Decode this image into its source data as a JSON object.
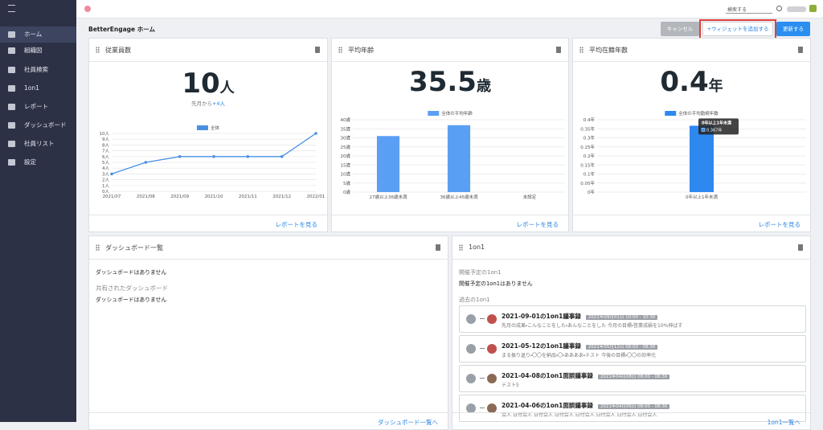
{
  "sidebar": {
    "items": [
      "ホーム",
      "組織図",
      "社員検索",
      "1on1",
      "レポート",
      "ダッシュボード",
      "社員リスト",
      "設定"
    ]
  },
  "topbar": {
    "search_placeholder": "検索する"
  },
  "header": {
    "title": "BetterEngage ホーム",
    "cancel": "キャンセル",
    "add_widget": "+ウィジェットを追加する",
    "update": "更新する"
  },
  "widgets": [
    {
      "title": "従業員数",
      "value": "10",
      "unit": "人",
      "note": "先月から",
      "delta": "+4人",
      "link": "レポートを見る"
    },
    {
      "title": "平均年齢",
      "value": "35.5",
      "unit": "歳",
      "link": "レポートを見る"
    },
    {
      "title": "平均在籍年数",
      "value": "0.4",
      "unit": "年",
      "link": "レポートを見る"
    }
  ],
  "chart_data": [
    {
      "type": "line",
      "categories": [
        "2021/07",
        "2021/08",
        "2021/09",
        "2021/10",
        "2021/11",
        "2021/12",
        "2022/01"
      ],
      "series": [
        {
          "name": "全体",
          "color": "#4a90e2",
          "values": [
            3,
            5,
            6,
            6,
            6,
            6,
            10
          ]
        }
      ],
      "ylim": [
        0,
        10
      ],
      "yticks": [
        {
          "value": 0,
          "label": "0人"
        },
        {
          "value": 1,
          "label": "1人"
        },
        {
          "value": 2,
          "label": "2人"
        },
        {
          "value": 3,
          "label": "3人"
        },
        {
          "value": 4,
          "label": "4人"
        },
        {
          "value": 5,
          "label": "5人"
        },
        {
          "value": 6,
          "label": "6人"
        },
        {
          "value": 7,
          "label": "7人"
        },
        {
          "value": 8,
          "label": "8人"
        },
        {
          "value": 9,
          "label": "9人"
        },
        {
          "value": 10,
          "label": "10人"
        }
      ],
      "grid": true,
      "legend": "top"
    },
    {
      "type": "bar",
      "categories": [
        "27歳以上36歳未満",
        "36歳以上45歳未満",
        "未設定"
      ],
      "series": [
        {
          "name": "全体の平均年齢",
          "color": "#5b9ff5",
          "values": [
            31,
            37,
            null
          ]
        }
      ],
      "ylim": [
        0,
        40
      ],
      "yticks": [
        {
          "value": 0,
          "label": "0歳"
        },
        {
          "value": 5,
          "label": "5歳"
        },
        {
          "value": 10,
          "label": "10歳"
        },
        {
          "value": 15,
          "label": "15歳"
        },
        {
          "value": 20,
          "label": "20歳"
        },
        {
          "value": 25,
          "label": "25歳"
        },
        {
          "value": 30,
          "label": "30歳"
        },
        {
          "value": 35,
          "label": "35歳"
        },
        {
          "value": 40,
          "label": "40歳"
        }
      ],
      "grid": true,
      "legend": "top"
    },
    {
      "type": "bar",
      "categories": [
        "0年以上1年未満"
      ],
      "series": [
        {
          "name": "全体の平均勤続年数",
          "color": "#2f87f0",
          "values": [
            0.367
          ],
          "value_labels": [
            "0.367年"
          ]
        }
      ],
      "ylim": [
        0,
        0.4
      ],
      "yticks": [
        {
          "value": 0,
          "label": "0年"
        },
        {
          "value": 0.05,
          "label": "0.05年"
        },
        {
          "value": 0.1,
          "label": "0.1年"
        },
        {
          "value": 0.15,
          "label": "0.15年"
        },
        {
          "value": 0.2,
          "label": "0.2年"
        },
        {
          "value": 0.25,
          "label": "0.25年"
        },
        {
          "value": 0.3,
          "label": "0.3年"
        },
        {
          "value": 0.35,
          "label": "0.35年"
        },
        {
          "value": 0.4,
          "label": "0.4年"
        }
      ],
      "grid": true,
      "legend": "top",
      "tooltip": true
    }
  ],
  "dashboard_widget": {
    "title": "ダッシュボード一覧",
    "empty": "ダッシュボードはありません",
    "shared_title": "共有されたダッシュボード",
    "shared_empty": "ダッシュボードはありません",
    "link": "ダッシュボード一覧へ"
  },
  "oneonone_widget": {
    "title": "1on1",
    "upcoming_title": "開催予定の1on1",
    "upcoming_empty": "開催予定の1on1はありません",
    "past_title": "過去の1on1",
    "items": [
      {
        "title": "2021-09-01の1on1議事録",
        "date": "2021年09月01日 10:00 - 10:30",
        "summary": "先月の成果・こんなことをした・あんなことをした 今月の目標・営業成績を10%伸ばす"
      },
      {
        "title": "2021-05-12の1on1議事録",
        "date": "2021年05月12日 08:00 - 08:30",
        "summary": "まる振り返り・〇〇を納品・〇・ああああ・テスト 今後の目標・〇〇の効率化"
      },
      {
        "title": "2021-04-08の1on1面談議事録",
        "date": "2021年04月08日 08:00 - 08:30",
        "summary": "テスト5"
      },
      {
        "title": "2021-04-06の1on1面談議事録",
        "date": "2021年04月06日 08:00 - 08:30",
        "summary": "会人 日付会人 日付会人 日付会人 日付会人 日付会人 日付会人 日付会人"
      }
    ],
    "link": "1on1一覧へ"
  }
}
